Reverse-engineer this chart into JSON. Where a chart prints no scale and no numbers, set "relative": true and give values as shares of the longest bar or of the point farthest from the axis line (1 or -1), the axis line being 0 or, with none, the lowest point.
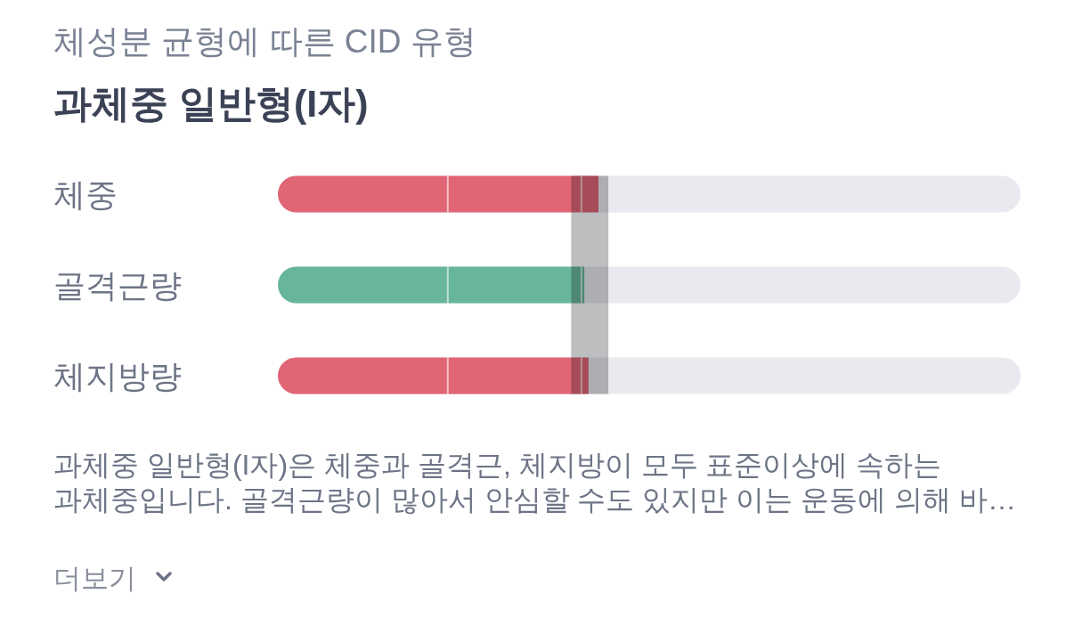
{
  "chart_data": {
    "type": "bar",
    "orientation": "horizontal",
    "relative": true,
    "title": "체성분 균형에 따른 CID 유형",
    "subtitle": "과체중 일반형(I자)",
    "categories": [
      "체중",
      "골격근량",
      "체지방량"
    ],
    "values": [
      1,
      0.956,
      0.969
    ],
    "colors": [
      "#e06575",
      "#67b699",
      "#e06575"
    ],
    "bands": [
      {
        "axis": "x",
        "from": 0.915,
        "to": 1.031,
        "color": "#bdbec0"
      }
    ],
    "ref_lines": [
      {
        "axis": "x",
        "value": 0.53,
        "color": "#ffffff"
      },
      {
        "axis": "x",
        "value": 0.947,
        "color": "#ffffff"
      }
    ],
    "annotations": [
      "과체중 일반형(I자)은 체중과 골격근, 체지방이 모두 표준이상에 속하는",
      "과체중입니다. 골격근량이 많아서 안심할 수도 있지만 이는 운동에 의해 바…",
      "더보기"
    ]
  }
}
